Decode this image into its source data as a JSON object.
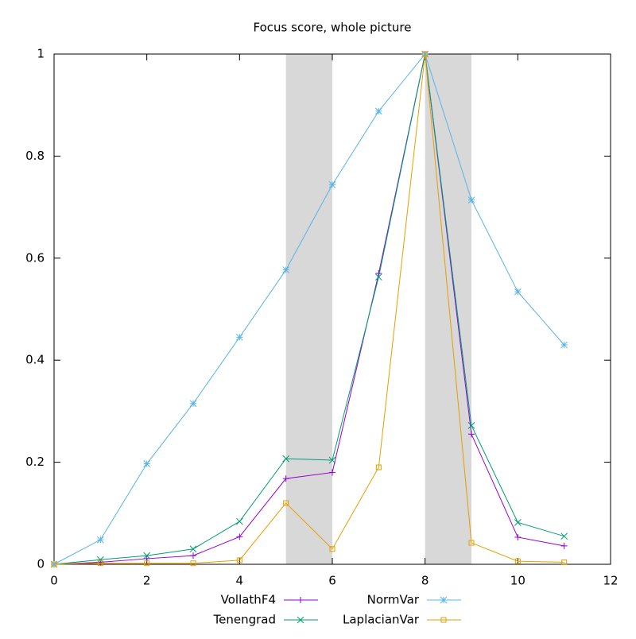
{
  "chart_data": {
    "type": "line",
    "title": "Focus score, whole picture",
    "x": [
      0,
      1,
      2,
      3,
      4,
      5,
      6,
      7,
      8,
      9,
      10,
      11
    ],
    "series": [
      {
        "name": "VollathF4",
        "color": "#9400d3",
        "marker": "plus",
        "values": [
          0,
          0.004,
          0.011,
          0.017,
          0.054,
          0.168,
          0.18,
          0.57,
          1,
          0.255,
          0.053,
          0.036
        ]
      },
      {
        "name": "Tenengrad",
        "color": "#009e73",
        "marker": "cross",
        "values": [
          0,
          0.009,
          0.017,
          0.03,
          0.084,
          0.207,
          0.204,
          0.563,
          1,
          0.272,
          0.082,
          0.055
        ]
      },
      {
        "name": "NormVar",
        "color": "#56b4e9",
        "marker": "star",
        "values": [
          0,
          0.048,
          0.197,
          0.315,
          0.445,
          0.577,
          0.744,
          0.888,
          1,
          0.714,
          0.534,
          0.43
        ]
      },
      {
        "name": "LaplacianVar",
        "color": "#e69f00",
        "marker": "square",
        "values": [
          0,
          0.002,
          0.002,
          0.002,
          0.008,
          0.12,
          0.03,
          0.19,
          1,
          0.042,
          0.006,
          0.004
        ]
      }
    ],
    "shaded_regions": [
      [
        5,
        6
      ],
      [
        8,
        9
      ]
    ],
    "xlim": [
      0,
      12
    ],
    "xticks": [
      0,
      2,
      4,
      6,
      8,
      10,
      12
    ],
    "ylim": [
      0,
      1
    ],
    "yticks": [
      0,
      0.2,
      0.4,
      0.6,
      0.8,
      1
    ],
    "legend": "bottom"
  }
}
